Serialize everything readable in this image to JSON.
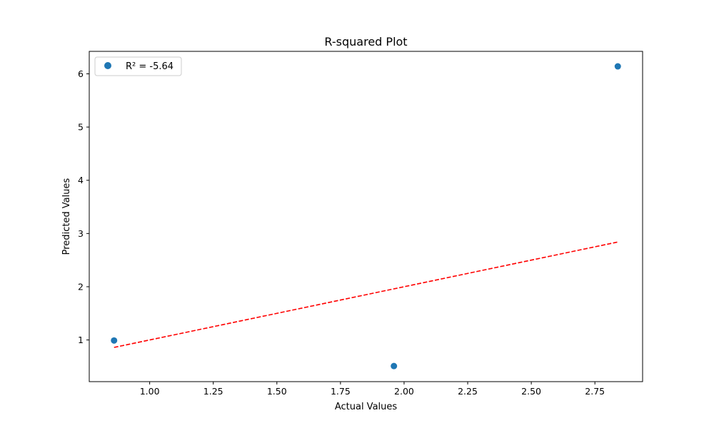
{
  "chart_data": {
    "type": "scatter",
    "title": "R-squared Plot",
    "xlabel": "Actual Values",
    "ylabel": "Predicted Values",
    "xlim": [
      0.7625,
      2.9375
    ],
    "ylim": [
      0.217,
      6.422
    ],
    "xticks": [
      1.0,
      1.25,
      1.5,
      1.75,
      2.0,
      2.25,
      2.5,
      2.75
    ],
    "xtick_labels": [
      "1.00",
      "1.25",
      "1.50",
      "1.75",
      "2.00",
      "2.25",
      "2.50",
      "2.75"
    ],
    "yticks": [
      1,
      2,
      3,
      4,
      5,
      6
    ],
    "ytick_labels": [
      "1",
      "2",
      "3",
      "4",
      "5",
      "6"
    ],
    "series": [
      {
        "name": "R² = -5.64",
        "kind": "scatter",
        "color": "#1f77b4",
        "x": [
          0.86,
          1.96,
          2.84
        ],
        "y": [
          0.99,
          0.51,
          6.14
        ]
      }
    ],
    "reference_line": {
      "style": "dashed",
      "color": "#ff0000",
      "x": [
        0.86,
        2.84
      ],
      "y": [
        0.86,
        2.84
      ]
    },
    "legend": {
      "placement": "top-left"
    },
    "grid": false
  }
}
